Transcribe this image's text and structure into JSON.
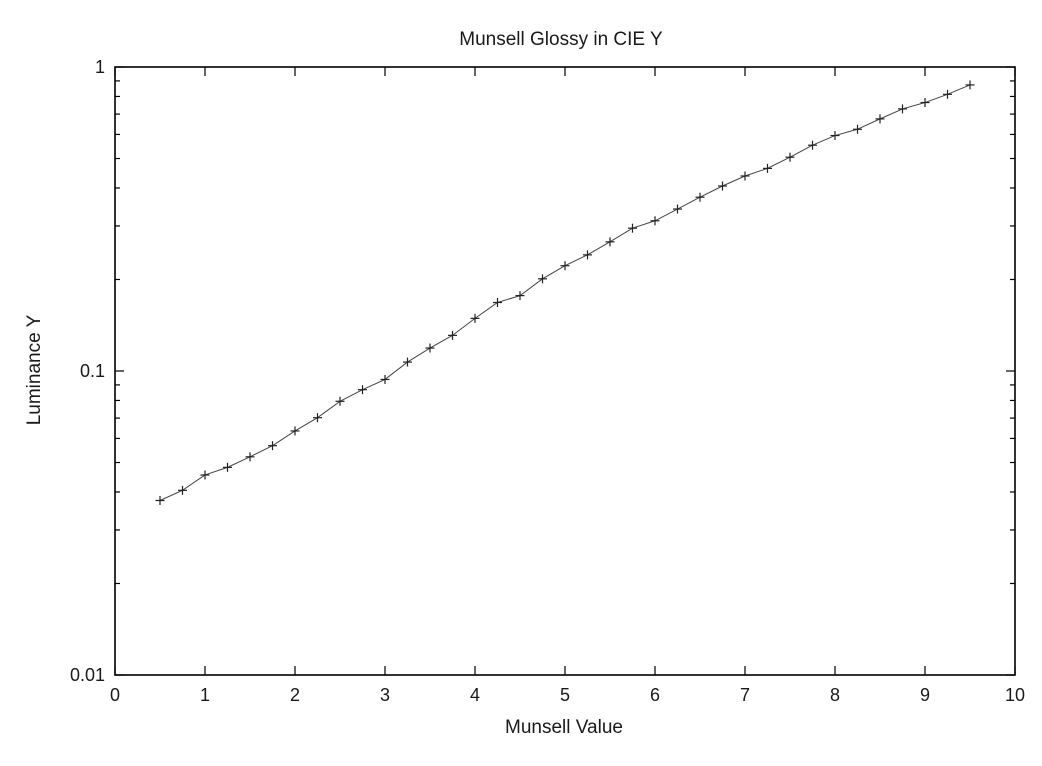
{
  "chart_data": {
    "type": "line",
    "title": "Munsell Glossy in CIE Y",
    "xlabel": "Munsell Value",
    "ylabel": "Luminance Y",
    "xlim": [
      0,
      10
    ],
    "ylim": [
      0.01,
      1
    ],
    "yscale": "log",
    "grid": false,
    "marker": "plus",
    "x_ticks": [
      0,
      1,
      2,
      3,
      4,
      5,
      6,
      7,
      8,
      9,
      10
    ],
    "x_tick_labels": [
      "0",
      "1",
      "2",
      "3",
      "4",
      "5",
      "6",
      "7",
      "8",
      "9",
      "10"
    ],
    "y_ticks": [
      0.01,
      0.1,
      1
    ],
    "y_tick_labels": [
      "0.01",
      "0.1",
      "1"
    ],
    "series": [
      {
        "x": [
          0.5,
          0.75,
          1.0,
          1.25,
          1.5,
          1.75,
          2.0,
          2.25,
          2.5,
          2.75,
          3.0,
          3.25,
          3.5,
          3.75,
          4.0,
          4.25,
          4.5,
          4.75,
          5.0,
          5.25,
          5.5,
          5.75,
          6.0,
          6.25,
          6.5,
          6.75,
          7.0,
          7.25,
          7.5,
          7.75,
          8.0,
          8.25,
          8.5,
          8.75,
          9.0,
          9.25,
          9.5
        ],
        "y": [
          0.0375,
          0.0405,
          0.0455,
          0.0482,
          0.0522,
          0.0568,
          0.0635,
          0.0702,
          0.0795,
          0.0868,
          0.0938,
          0.107,
          0.119,
          0.131,
          0.149,
          0.168,
          0.177,
          0.201,
          0.222,
          0.241,
          0.266,
          0.295,
          0.312,
          0.341,
          0.373,
          0.406,
          0.438,
          0.464,
          0.505,
          0.553,
          0.595,
          0.624,
          0.675,
          0.728,
          0.764,
          0.813,
          0.873
        ],
        "color": "#444444"
      }
    ]
  }
}
